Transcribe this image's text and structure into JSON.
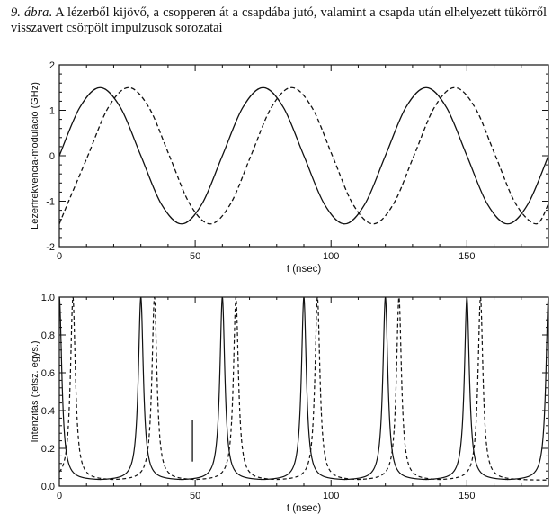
{
  "caption": {
    "figure_label": "9. ábra",
    "text": ". A lézerből kijövő, a csopperen át a csapdába jutó, valamint a csapda után elhelyezett tükörről visszavert csörpölt impulzusok sorozatai"
  },
  "chart_data": [
    {
      "type": "line",
      "title": "",
      "xlabel": "t (nsec)",
      "ylabel": "Lézerfrekvencia-moduláció (GHz)",
      "xlim": [
        0,
        180
      ],
      "ylim": [
        -2,
        2
      ],
      "x_ticks": [
        0,
        50,
        100,
        150
      ],
      "y_ticks": [
        -2,
        -1,
        0,
        1,
        2
      ],
      "grid": false,
      "legend": "none",
      "series": [
        {
          "style": "solid",
          "color": "#111111",
          "x": [
            0,
            7.5,
            15,
            22.5,
            30,
            37.5,
            45,
            52.5,
            60,
            67.5,
            75,
            82.5,
            90,
            97.5,
            105,
            112.5,
            120,
            127.5,
            135,
            142.5,
            150,
            157.5,
            165,
            172.5,
            180
          ],
          "y": [
            0,
            1.06,
            1.5,
            1.06,
            0,
            -1.06,
            -1.5,
            -1.06,
            0,
            1.06,
            1.5,
            1.06,
            0,
            -1.06,
            -1.5,
            -1.06,
            0,
            1.06,
            1.5,
            1.06,
            0,
            -1.06,
            -1.5,
            -1.06,
            0
          ]
        },
        {
          "style": "dashed",
          "color": "#111111",
          "x": [
            0,
            3,
            10.5,
            18,
            25.5,
            33,
            40.5,
            48,
            55.5,
            63,
            70.5,
            78,
            85.5,
            93,
            100.5,
            108,
            115.5,
            123,
            130.5,
            138,
            145.5,
            153,
            160.5,
            168,
            175.5,
            180
          ],
          "y": [
            -1.5,
            -1.06,
            0,
            1.06,
            1.5,
            1.06,
            0,
            -1.06,
            -1.5,
            -1.06,
            0,
            1.06,
            1.5,
            1.06,
            0,
            -1.06,
            -1.5,
            -1.06,
            0,
            1.06,
            1.5,
            1.06,
            0,
            -1.06,
            -1.5,
            -1.06
          ]
        }
      ]
    },
    {
      "type": "line",
      "title": "",
      "xlabel": "t (nsec)",
      "ylabel": "Intenzitás (tetsz. egys.)",
      "xlim": [
        0,
        180
      ],
      "ylim": [
        0,
        1.0
      ],
      "x_ticks": [
        0,
        50,
        100,
        150
      ],
      "y_ticks": [
        0.0,
        0.2,
        0.4,
        0.6,
        0.8,
        1.0
      ],
      "y_tick_labels": [
        "0.0",
        "0.2",
        "0.4",
        "0.6",
        "0.8",
        "1.0"
      ],
      "grid": false,
      "legend": "none",
      "series": [
        {
          "style": "solid",
          "color": "#111111",
          "peaks_x": [
            0,
            30,
            60,
            90,
            120,
            150,
            180
          ],
          "peak_y": 1.0,
          "min_y": 0.03
        },
        {
          "style": "dashed",
          "color": "#111111",
          "peaks_x": [
            5,
            35,
            65,
            95,
            125,
            155
          ],
          "peak_y": 1.0,
          "min_y": 0.03
        }
      ],
      "annotations": [
        {
          "type": "vertical-marker",
          "x": 49,
          "y_from": 0.13,
          "y_to": 0.35
        }
      ]
    }
  ]
}
